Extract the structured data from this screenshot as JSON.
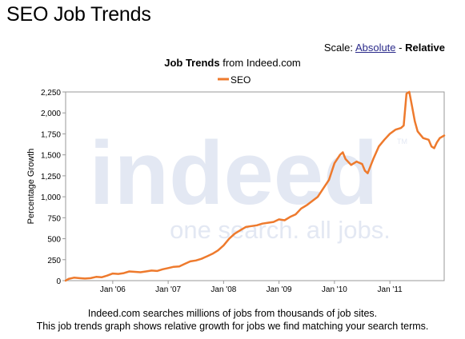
{
  "page": {
    "title": "SEO Job Trends",
    "scale_label": "Scale:",
    "scale_absolute": "Absolute",
    "scale_separator": "-",
    "scale_relative": "Relative"
  },
  "chart_heading": {
    "bold": "Job Trends",
    "rest": "from Indeed.com"
  },
  "watermark": {
    "brand": "indeed",
    "tm": "TM",
    "tagline": "one search. all jobs."
  },
  "footer": {
    "line1": "Indeed.com searches millions of jobs from thousands of job sites.",
    "line2": "This job trends graph shows relative growth for jobs we find matching your search terms."
  },
  "colors": {
    "series": "#ee7a2d",
    "axis": "#999999",
    "watermark": "#e3e8f3"
  },
  "chart_data": {
    "type": "line",
    "title": "Job Trends from Indeed.com",
    "ylabel": "Percentage Growth",
    "xlabel": "",
    "ylim": [
      0,
      2250
    ],
    "yticks": [
      0,
      250,
      500,
      750,
      1000,
      1250,
      1500,
      1750,
      2000,
      2250
    ],
    "ytick_labels": [
      "0",
      "250",
      "500",
      "750",
      "1,000",
      "1,250",
      "1,500",
      "1,750",
      "2,000",
      "2,250"
    ],
    "xlim": [
      2005.15,
      2011.98
    ],
    "xticks": [
      2006,
      2007,
      2008,
      2009,
      2010,
      2011
    ],
    "xtick_labels": [
      "Jan '06",
      "Jan '07",
      "Jan '08",
      "Jan '09",
      "Jan '10",
      "Jan '11"
    ],
    "legend": "top-center",
    "grid": false,
    "series": [
      {
        "name": "SEO",
        "x": [
          2005.15,
          2005.2,
          2005.3,
          2005.4,
          2005.5,
          2005.6,
          2005.7,
          2005.8,
          2005.9,
          2006.0,
          2006.1,
          2006.2,
          2006.3,
          2006.4,
          2006.5,
          2006.6,
          2006.7,
          2006.8,
          2006.9,
          2007.0,
          2007.1,
          2007.2,
          2007.3,
          2007.4,
          2007.5,
          2007.6,
          2007.7,
          2007.8,
          2007.9,
          2008.0,
          2008.1,
          2008.2,
          2008.3,
          2008.4,
          2008.5,
          2008.6,
          2008.7,
          2008.8,
          2008.9,
          2009.0,
          2009.1,
          2009.2,
          2009.3,
          2009.4,
          2009.5,
          2009.6,
          2009.7,
          2009.8,
          2009.9,
          2010.0,
          2010.1,
          2010.15,
          2010.2,
          2010.3,
          2010.4,
          2010.5,
          2010.55,
          2010.6,
          2010.7,
          2010.8,
          2010.9,
          2011.0,
          2011.1,
          2011.2,
          2011.25,
          2011.3,
          2011.35,
          2011.4,
          2011.45,
          2011.5,
          2011.6,
          2011.7,
          2011.75,
          2011.8,
          2011.85,
          2011.9,
          2011.98
        ],
        "y": [
          0,
          20,
          35,
          30,
          25,
          30,
          45,
          40,
          60,
          85,
          80,
          90,
          110,
          105,
          100,
          110,
          120,
          115,
          135,
          150,
          165,
          170,
          200,
          230,
          240,
          260,
          290,
          320,
          360,
          420,
          500,
          560,
          600,
          640,
          650,
          660,
          680,
          690,
          700,
          730,
          720,
          760,
          790,
          860,
          900,
          950,
          1000,
          1100,
          1200,
          1400,
          1500,
          1530,
          1450,
          1380,
          1420,
          1390,
          1310,
          1280,
          1450,
          1600,
          1680,
          1750,
          1800,
          1820,
          1850,
          2230,
          2250,
          2080,
          1900,
          1780,
          1700,
          1680,
          1600,
          1580,
          1650,
          1700,
          1730
        ]
      }
    ]
  }
}
